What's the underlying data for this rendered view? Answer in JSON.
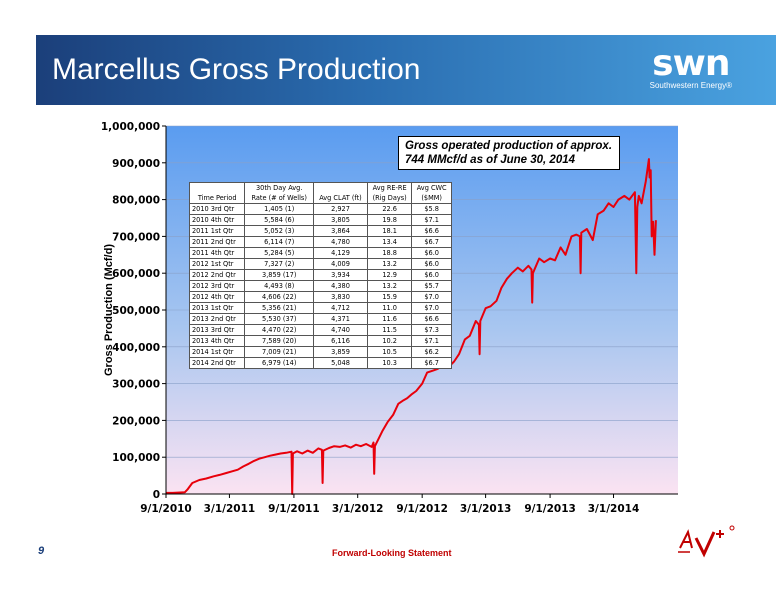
{
  "slide": {
    "title": "Marcellus Gross Production",
    "page_number": "9",
    "footer": "Forward-Looking Statement"
  },
  "logo": {
    "mark": "swn",
    "subtitle": "Southwestern Energy®"
  },
  "chart_data": {
    "type": "line",
    "title": "",
    "xlabel": "",
    "ylabel": "Gross Production (Mcf/d)",
    "ylim": [
      0,
      1000000
    ],
    "yticks": [
      0,
      100000,
      200000,
      300000,
      400000,
      500000,
      600000,
      700000,
      800000,
      900000,
      1000000
    ],
    "ytick_labels": [
      "0",
      "100,000",
      "200,000",
      "300,000",
      "400,000",
      "500,000",
      "600,000",
      "700,000",
      "800,000",
      "900,000",
      "1,000,000"
    ],
    "xlim": [
      "2010-09-01",
      "2014-09-01"
    ],
    "xticks": [
      "2010-09-01",
      "2011-03-01",
      "2011-09-01",
      "2012-03-01",
      "2012-09-01",
      "2013-03-01",
      "2013-09-01",
      "2014-03-01"
    ],
    "xtick_labels": [
      "9/1/2010",
      "3/1/2011",
      "9/1/2011",
      "3/1/2012",
      "9/1/2012",
      "3/1/2013",
      "9/1/2013",
      "3/1/2014"
    ],
    "grid": true,
    "series_color": "#e8000b",
    "series": [
      {
        "x": [
          "2010-09-01",
          "2010-09-20",
          "2010-10-25",
          "2010-11-01",
          "2010-11-15",
          "2010-12-05",
          "2010-12-25",
          "2011-01-15",
          "2011-02-01",
          "2011-02-20",
          "2011-03-10",
          "2011-03-25",
          "2011-04-10",
          "2011-04-25",
          "2011-05-10",
          "2011-05-25",
          "2011-06-10",
          "2011-06-25",
          "2011-07-10",
          "2011-07-25",
          "2011-08-10",
          "2011-08-25",
          "2011-08-27",
          "2011-08-29",
          "2011-09-10",
          "2011-09-25",
          "2011-10-10",
          "2011-10-25",
          "2011-11-10",
          "2011-11-20",
          "2011-11-22",
          "2011-11-24",
          "2011-12-10",
          "2011-12-25",
          "2012-01-10",
          "2012-01-25",
          "2012-02-10",
          "2012-02-25",
          "2012-03-10",
          "2012-03-25",
          "2012-04-10",
          "2012-04-15",
          "2012-04-17",
          "2012-04-19",
          "2012-05-10",
          "2012-05-25",
          "2012-06-10",
          "2012-06-25",
          "2012-07-10",
          "2012-07-20",
          "2012-08-01",
          "2012-08-15",
          "2012-09-01",
          "2012-09-15",
          "2012-10-01",
          "2012-10-15",
          "2012-11-01",
          "2012-11-15",
          "2012-12-01",
          "2012-12-15",
          "2013-01-01",
          "2013-01-15",
          "2013-02-01",
          "2013-02-10",
          "2013-02-12",
          "2013-02-14",
          "2013-03-01",
          "2013-03-15",
          "2013-04-01",
          "2013-04-15",
          "2013-05-01",
          "2013-05-15",
          "2013-06-01",
          "2013-06-15",
          "2013-07-01",
          "2013-07-10",
          "2013-07-12",
          "2013-07-14",
          "2013-08-01",
          "2013-08-15",
          "2013-09-01",
          "2013-09-15",
          "2013-10-01",
          "2013-10-15",
          "2013-11-01",
          "2013-11-15",
          "2013-11-25",
          "2013-11-27",
          "2013-11-29",
          "2013-12-15",
          "2014-01-01",
          "2014-01-15",
          "2014-02-01",
          "2014-02-15",
          "2014-03-01",
          "2014-03-15",
          "2014-04-01",
          "2014-04-15",
          "2014-05-01",
          "2014-05-05",
          "2014-05-08",
          "2014-05-12",
          "2014-05-20",
          "2014-06-01",
          "2014-06-10",
          "2014-06-12",
          "2014-06-15",
          "2014-06-18",
          "2014-06-22",
          "2014-06-26",
          "2014-06-30"
        ],
        "values": [
          3000,
          3000,
          5000,
          12000,
          30000,
          38000,
          42000,
          48000,
          52000,
          57000,
          62000,
          66000,
          75000,
          82000,
          90000,
          96000,
          100000,
          104000,
          107000,
          110000,
          112000,
          115000,
          0,
          110000,
          116000,
          110000,
          118000,
          112000,
          124000,
          120000,
          30000,
          118000,
          125000,
          130000,
          128000,
          132000,
          126000,
          134000,
          130000,
          136000,
          128000,
          140000,
          55000,
          130000,
          170000,
          195000,
          215000,
          245000,
          255000,
          260000,
          270000,
          280000,
          300000,
          330000,
          335000,
          340000,
          350000,
          345000,
          360000,
          380000,
          420000,
          430000,
          470000,
          460000,
          380000,
          470000,
          505000,
          510000,
          525000,
          560000,
          585000,
          600000,
          615000,
          605000,
          620000,
          610000,
          520000,
          600000,
          640000,
          630000,
          640000,
          635000,
          670000,
          650000,
          700000,
          705000,
          700000,
          600000,
          710000,
          720000,
          690000,
          760000,
          770000,
          790000,
          780000,
          800000,
          810000,
          800000,
          820000,
          600000,
          780000,
          810000,
          790000,
          850000,
          910000,
          860000,
          880000,
          700000,
          740000,
          650000,
          744000
        ]
      }
    ],
    "annotation": "Gross operated production of approx. 744 MMcf/d as of June 30, 2014",
    "table": {
      "headers": [
        "Time Period",
        "30th Day Avg.\nRate (# of Wells)",
        "Avg CLAT (ft)",
        "Avg RE-RE\n(Rig Days)",
        "Avg CWC\n($MM)"
      ],
      "rows": [
        [
          "2010 3rd Qtr",
          "1,405 (1)",
          "2,927",
          "22.6",
          "$5.8"
        ],
        [
          "2010 4th Qtr",
          "5,584 (6)",
          "3,805",
          "19.8",
          "$7.1"
        ],
        [
          "2011 1st Qtr",
          "5,052 (3)",
          "3,864",
          "18.1",
          "$6.6"
        ],
        [
          "2011 2nd Qtr",
          "6,114 (7)",
          "4,780",
          "13.4",
          "$6.7"
        ],
        [
          "2011 4th Qtr",
          "5,284 (5)",
          "4,129",
          "18.8",
          "$6.0"
        ],
        [
          "2012 1st Qtr",
          "7,327 (2)",
          "4,009",
          "13.2",
          "$6.0"
        ],
        [
          "2012 2nd Qtr",
          "3,859 (17)",
          "3,934",
          "12.9",
          "$6.0"
        ],
        [
          "2012 3rd Qtr",
          "4,493 (8)",
          "4,380",
          "13.2",
          "$5.7"
        ],
        [
          "2012 4th Qtr",
          "4,606 (22)",
          "3,830",
          "15.9",
          "$7.0"
        ],
        [
          "2013 1st Qtr",
          "5,356 (21)",
          "4,712",
          "11.0",
          "$7.0"
        ],
        [
          "2013 2nd Qtr",
          "5,530 (37)",
          "4,371",
          "11.6",
          "$6.6"
        ],
        [
          "2013 3rd Qtr",
          "4,470 (22)",
          "4,740",
          "11.5",
          "$7.3"
        ],
        [
          "2013 4th Qtr",
          "7,589 (20)",
          "6,116",
          "10.2",
          "$7.1"
        ],
        [
          "2014 1st Qtr",
          "7,009 (21)",
          "3,859",
          "10.5",
          "$6.2"
        ],
        [
          "2014 2nd Qtr",
          "6,979 (14)",
          "5,048",
          "10.3",
          "$6.7"
        ]
      ]
    }
  }
}
